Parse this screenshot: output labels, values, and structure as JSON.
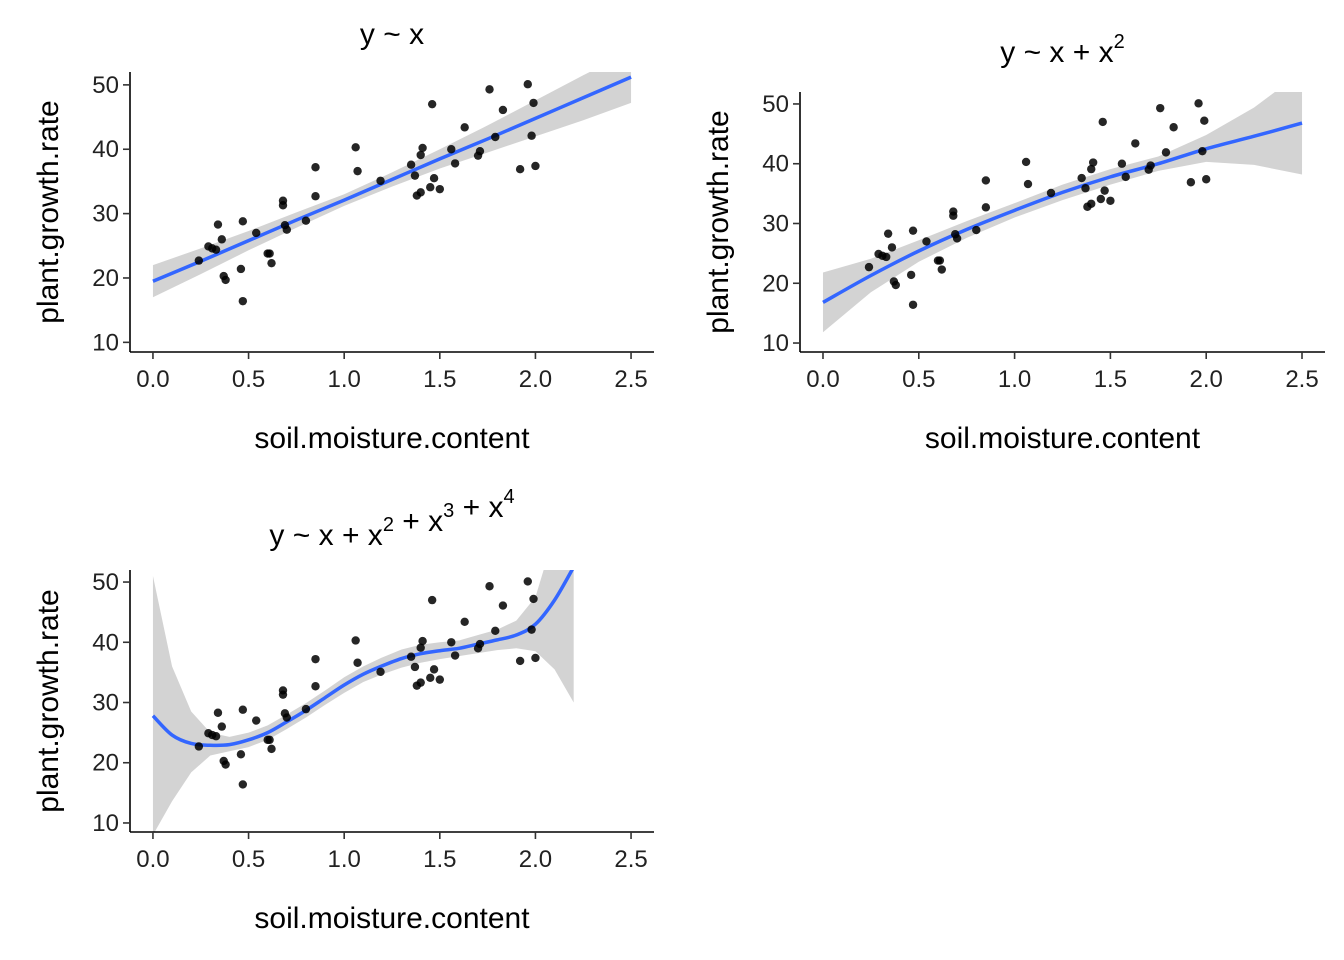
{
  "chart_data": [
    {
      "type": "scatter",
      "title": {
        "pre": "y ~ x",
        "terms": []
      },
      "xlabel": "soil.moisture.content",
      "ylabel": "plant.growth.rate",
      "xlim": [
        -0.12,
        2.62
      ],
      "ylim": [
        8.5,
        52
      ],
      "xticks": [
        0.0,
        0.5,
        1.0,
        1.5,
        2.0,
        2.5
      ],
      "xtick_labels": [
        "0.0",
        "0.5",
        "1.0",
        "1.5",
        "2.0",
        "2.5"
      ],
      "yticks": [
        10,
        20,
        30,
        40,
        50
      ],
      "ytick_labels": [
        "10",
        "20",
        "30",
        "40",
        "50"
      ],
      "grid": false,
      "fit": {
        "type": "line",
        "color": "#3366ff",
        "degree": 1
      },
      "band_color": "#d3d3d3",
      "curve_x": [
        0.0,
        0.25,
        0.5,
        0.75,
        1.0,
        1.25,
        1.5,
        1.75,
        2.0,
        2.25,
        2.5
      ],
      "curve_y": [
        19.5,
        22.6,
        25.8,
        29.0,
        32.1,
        35.3,
        38.5,
        41.6,
        44.8,
        48.0,
        51.2
      ],
      "band_lower": [
        17.0,
        20.6,
        24.3,
        27.8,
        31.2,
        34.2,
        37.0,
        39.5,
        42.0,
        44.5,
        47.2
      ],
      "band_upper": [
        22.0,
        24.6,
        27.3,
        30.2,
        33.0,
        36.4,
        40.0,
        43.7,
        47.6,
        51.5,
        55.2
      ],
      "points_x": [
        0.24,
        0.29,
        0.31,
        0.33,
        0.34,
        0.36,
        0.37,
        0.38,
        0.46,
        0.47,
        0.47,
        0.54,
        0.6,
        0.61,
        0.62,
        0.68,
        0.68,
        0.69,
        0.7,
        0.8,
        0.85,
        0.85,
        1.06,
        1.07,
        1.19,
        1.35,
        1.37,
        1.38,
        1.4,
        1.4,
        1.41,
        1.45,
        1.46,
        1.47,
        1.5,
        1.56,
        1.58,
        1.63,
        1.7,
        1.71,
        1.76,
        1.79,
        1.83,
        1.92,
        1.96,
        1.98,
        1.99,
        2.0
      ],
      "points_y": [
        22.7,
        24.9,
        24.6,
        24.4,
        28.3,
        26.0,
        20.3,
        19.7,
        21.4,
        16.4,
        28.8,
        27.0,
        23.8,
        23.8,
        22.3,
        32.0,
        31.3,
        28.2,
        27.5,
        28.9,
        32.7,
        37.2,
        40.3,
        36.6,
        35.1,
        37.6,
        35.9,
        32.8,
        33.3,
        39.1,
        40.2,
        34.1,
        47.0,
        35.5,
        33.8,
        40.0,
        37.8,
        43.4,
        39.0,
        39.7,
        49.3,
        41.9,
        46.1,
        36.9,
        50.1,
        42.1,
        47.2,
        37.4
      ]
    },
    {
      "type": "scatter",
      "title": {
        "pre": "y ~ x",
        "terms": [
          {
            "base": "x",
            "exp": "2"
          }
        ]
      },
      "xlabel": "soil.moisture.content",
      "ylabel": "plant.growth.rate",
      "xlim": [
        -0.12,
        2.62
      ],
      "ylim": [
        8.5,
        52
      ],
      "xticks": [
        0.0,
        0.5,
        1.0,
        1.5,
        2.0,
        2.5
      ],
      "xtick_labels": [
        "0.0",
        "0.5",
        "1.0",
        "1.5",
        "2.0",
        "2.5"
      ],
      "yticks": [
        10,
        20,
        30,
        40,
        50
      ],
      "ytick_labels": [
        "10",
        "20",
        "30",
        "40",
        "50"
      ],
      "grid": false,
      "fit": {
        "type": "line",
        "color": "#3366ff",
        "degree": 2
      },
      "band_color": "#d3d3d3",
      "curve_x": [
        0.0,
        0.25,
        0.5,
        0.75,
        1.0,
        1.25,
        1.5,
        1.75,
        2.0,
        2.25,
        2.5
      ],
      "curve_y": [
        16.8,
        21.3,
        25.4,
        29.0,
        32.2,
        35.2,
        37.8,
        40.0,
        42.5,
        44.6,
        46.8
      ],
      "band_lower": [
        11.8,
        18.5,
        23.6,
        27.6,
        31.0,
        33.9,
        36.5,
        38.8,
        40.3,
        39.8,
        38.2
      ],
      "band_upper": [
        21.8,
        24.1,
        27.2,
        30.4,
        33.4,
        36.5,
        39.1,
        41.2,
        44.8,
        49.4,
        55.4
      ],
      "points_x": [
        0.24,
        0.29,
        0.31,
        0.33,
        0.34,
        0.36,
        0.37,
        0.38,
        0.46,
        0.47,
        0.47,
        0.54,
        0.6,
        0.61,
        0.62,
        0.68,
        0.68,
        0.69,
        0.7,
        0.8,
        0.85,
        0.85,
        1.06,
        1.07,
        1.19,
        1.35,
        1.37,
        1.38,
        1.4,
        1.4,
        1.41,
        1.45,
        1.46,
        1.47,
        1.5,
        1.56,
        1.58,
        1.63,
        1.7,
        1.71,
        1.76,
        1.79,
        1.83,
        1.92,
        1.96,
        1.98,
        1.99,
        2.0
      ],
      "points_y": [
        22.7,
        24.9,
        24.6,
        24.4,
        28.3,
        26.0,
        20.3,
        19.7,
        21.4,
        16.4,
        28.8,
        27.0,
        23.8,
        23.8,
        22.3,
        32.0,
        31.3,
        28.2,
        27.5,
        28.9,
        32.7,
        37.2,
        40.3,
        36.6,
        35.1,
        37.6,
        35.9,
        32.8,
        33.3,
        39.1,
        40.2,
        34.1,
        47.0,
        35.5,
        33.8,
        40.0,
        37.8,
        43.4,
        39.0,
        39.7,
        49.3,
        41.9,
        46.1,
        36.9,
        50.1,
        42.1,
        47.2,
        37.4
      ]
    },
    {
      "type": "scatter",
      "title": {
        "pre": "y ~ x",
        "terms": [
          {
            "base": "x",
            "exp": "2"
          },
          {
            "base": "x",
            "exp": "3"
          },
          {
            "base": "x",
            "exp": "4"
          }
        ]
      },
      "xlabel": "soil.moisture.content",
      "ylabel": "plant.growth.rate",
      "xlim": [
        -0.12,
        2.62
      ],
      "ylim": [
        8.5,
        52
      ],
      "xticks": [
        0.0,
        0.5,
        1.0,
        1.5,
        2.0,
        2.5
      ],
      "xtick_labels": [
        "0.0",
        "0.5",
        "1.0",
        "1.5",
        "2.0",
        "2.5"
      ],
      "yticks": [
        10,
        20,
        30,
        40,
        50
      ],
      "ytick_labels": [
        "10",
        "20",
        "30",
        "40",
        "50"
      ],
      "grid": false,
      "fit": {
        "type": "line",
        "color": "#3366ff",
        "degree": 4
      },
      "band_color": "#d3d3d3",
      "curve_x": [
        0.0,
        0.1,
        0.2,
        0.3,
        0.4,
        0.5,
        0.6,
        0.7,
        0.8,
        0.9,
        1.0,
        1.1,
        1.2,
        1.3,
        1.4,
        1.5,
        1.6,
        1.7,
        1.8,
        1.9,
        2.0,
        2.1,
        2.2
      ],
      "curve_y": [
        27.8,
        24.6,
        23.2,
        22.9,
        23.0,
        23.8,
        25.0,
        26.8,
        28.7,
        30.8,
        32.9,
        34.7,
        36.1,
        37.3,
        38.1,
        38.6,
        39.0,
        39.7,
        40.4,
        41.2,
        43.0,
        47.0,
        52.5
      ],
      "band_lower": [
        8.0,
        13.6,
        18.4,
        21.2,
        21.9,
        22.6,
        23.8,
        25.6,
        27.5,
        29.6,
        31.6,
        33.4,
        34.7,
        35.8,
        36.6,
        37.2,
        37.7,
        38.2,
        38.7,
        39.0,
        38.5,
        35.5,
        30.0
      ],
      "band_upper": [
        51.0,
        36.0,
        28.5,
        25.0,
        24.3,
        25.0,
        26.2,
        28.0,
        29.9,
        32.0,
        34.2,
        36.0,
        37.5,
        38.8,
        39.6,
        40.0,
        40.3,
        41.2,
        42.1,
        43.6,
        47.5,
        58.0,
        65.0
      ],
      "points_x": [
        0.24,
        0.29,
        0.31,
        0.33,
        0.34,
        0.36,
        0.37,
        0.38,
        0.46,
        0.47,
        0.47,
        0.54,
        0.6,
        0.61,
        0.62,
        0.68,
        0.68,
        0.69,
        0.7,
        0.8,
        0.85,
        0.85,
        1.06,
        1.07,
        1.19,
        1.35,
        1.37,
        1.38,
        1.4,
        1.4,
        1.41,
        1.45,
        1.46,
        1.47,
        1.5,
        1.56,
        1.58,
        1.63,
        1.7,
        1.71,
        1.76,
        1.79,
        1.83,
        1.92,
        1.96,
        1.98,
        1.99,
        2.0
      ],
      "points_y": [
        22.7,
        24.9,
        24.6,
        24.4,
        28.3,
        26.0,
        20.3,
        19.7,
        21.4,
        16.4,
        28.8,
        27.0,
        23.8,
        23.8,
        22.3,
        32.0,
        31.3,
        28.2,
        27.5,
        28.9,
        32.7,
        37.2,
        40.3,
        36.6,
        35.1,
        37.6,
        35.9,
        32.8,
        33.3,
        39.1,
        40.2,
        34.1,
        47.0,
        35.5,
        33.8,
        40.0,
        37.8,
        43.4,
        39.0,
        39.7,
        49.3,
        41.9,
        46.1,
        36.9,
        50.1,
        42.1,
        47.2,
        37.4
      ]
    }
  ]
}
